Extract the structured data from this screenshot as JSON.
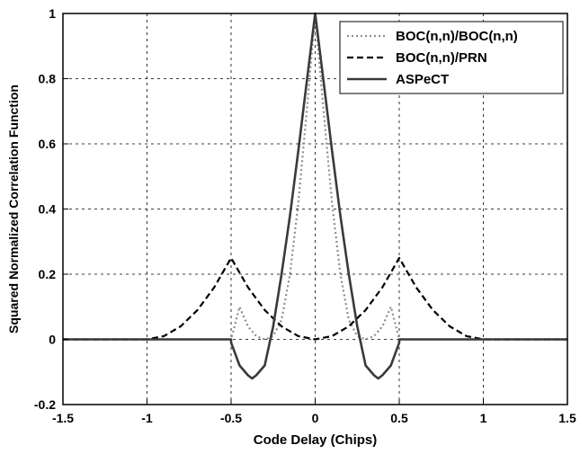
{
  "chart_data": {
    "type": "line",
    "title": "",
    "xlabel": "Code Delay (Chips)",
    "ylabel": "Squared Normalized Correlation Function",
    "xlim": [
      -1.5,
      1.5
    ],
    "ylim": [
      -0.2,
      1.0
    ],
    "x_ticks": [
      -1.5,
      -1,
      -0.5,
      0,
      0.5,
      1,
      1.5
    ],
    "x_tick_labels": [
      "-1.5",
      "-1",
      "-0.5",
      "0",
      "0.5",
      "1",
      "1.5"
    ],
    "y_ticks": [
      -0.2,
      0,
      0.2,
      0.4,
      0.6,
      0.8,
      1
    ],
    "y_tick_labels": [
      "-0.2",
      "0",
      "0.2",
      "0.4",
      "0.6",
      "0.8",
      "1"
    ],
    "grid": true,
    "grid_style": "dotted",
    "legend_position": "top-right",
    "series": [
      {
        "name": "BOC(n,n)/BOC(n,n)",
        "style": "dotted",
        "color": "#8c8c8c",
        "x": [
          -1.5,
          -0.5,
          -0.45,
          -0.4,
          -0.35,
          -0.3,
          -0.25,
          -0.2,
          -0.15,
          -0.1,
          -0.05,
          0,
          0.05,
          0.1,
          0.15,
          0.2,
          0.25,
          0.3,
          0.35,
          0.4,
          0.45,
          0.5,
          1.5
        ],
        "y": [
          0,
          0,
          0.1,
          0.04,
          0.01,
          0,
          0.01,
          0.06,
          0.2,
          0.42,
          0.7,
          1.0,
          0.7,
          0.42,
          0.2,
          0.06,
          0.01,
          0,
          0.01,
          0.04,
          0.1,
          0,
          0
        ]
      },
      {
        "name": "BOC(n,n)/PRN",
        "style": "dashed",
        "color": "#000000",
        "x": [
          -1.5,
          -1.0,
          -0.9,
          -0.8,
          -0.7,
          -0.6,
          -0.5,
          -0.4,
          -0.3,
          -0.2,
          -0.1,
          0,
          0.1,
          0.2,
          0.3,
          0.4,
          0.5,
          0.6,
          0.7,
          0.8,
          0.9,
          1.0,
          1.5
        ],
        "y": [
          0,
          0,
          0.01,
          0.04,
          0.09,
          0.16,
          0.25,
          0.16,
          0.09,
          0.04,
          0.01,
          0,
          0.01,
          0.04,
          0.09,
          0.16,
          0.25,
          0.16,
          0.09,
          0.04,
          0.01,
          0,
          0
        ]
      },
      {
        "name": "ASPeCT",
        "style": "solid",
        "color": "#3a3a3a",
        "x": [
          -1.5,
          -0.5,
          -0.5,
          -0.45,
          -0.4,
          -0.375,
          -0.35,
          -0.3,
          -0.25,
          -0.2,
          -0.15,
          -0.1,
          -0.05,
          0,
          0.05,
          0.1,
          0.15,
          0.2,
          0.25,
          0.3,
          0.35,
          0.375,
          0.4,
          0.45,
          0.5,
          0.5,
          1.5
        ],
        "y": [
          0,
          0,
          -0.01,
          -0.08,
          -0.11,
          -0.12,
          -0.11,
          -0.08,
          0.04,
          0.2,
          0.38,
          0.58,
          0.79,
          1.0,
          0.79,
          0.58,
          0.38,
          0.2,
          0.04,
          -0.08,
          -0.11,
          -0.12,
          -0.11,
          -0.08,
          -0.01,
          0,
          0
        ]
      }
    ]
  },
  "colors": {
    "background": "#ffffff",
    "axes": "#000000",
    "grid": "#000000"
  }
}
